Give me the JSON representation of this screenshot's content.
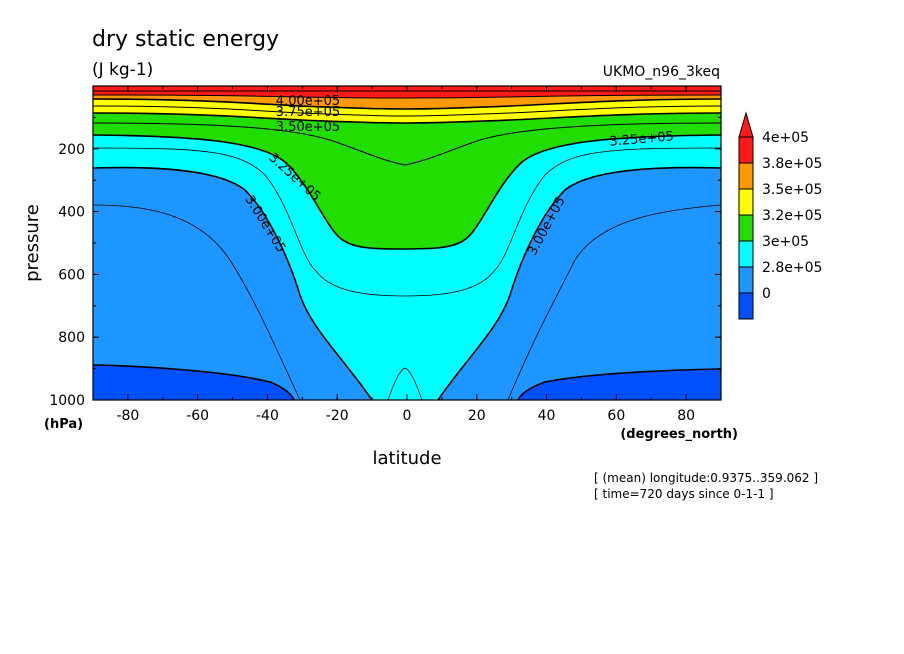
{
  "chart_data": {
    "type": "heatmap",
    "title": "dry static energy",
    "units": "(J kg-1)",
    "model": "UKMO_n96_3keq",
    "xlabel": "latitude",
    "x_units": "(degrees_north)",
    "ylabel": "pressure",
    "y_units": "(hPa)",
    "xlim": [
      -90,
      90
    ],
    "ylim": [
      1000,
      0
    ],
    "x_ticks": [
      -80,
      -60,
      -40,
      -20,
      0,
      20,
      40,
      60,
      80
    ],
    "y_ticks": [
      200,
      400,
      600,
      800,
      1000
    ],
    "x_tick_labels": [
      "-80",
      "-60",
      "-40",
      "-20",
      "0",
      "20",
      "40",
      "60",
      "80"
    ],
    "y_tick_labels": [
      "200",
      "400",
      "600",
      "800",
      "1000"
    ],
    "grid": false,
    "legend_position": "right",
    "colorbar": {
      "labels": [
        "4e+05",
        "3.8e+05",
        "3.5e+05",
        "3.2e+05",
        "3e+05",
        "2.8e+05",
        "0"
      ],
      "colors": [
        "#ff1a1a",
        "#ff9900",
        "#ffff00",
        "#22dd00",
        "#00ffff",
        "#1e96ff",
        "#0050ff"
      ]
    },
    "levels": [
      {
        "min": 0,
        "max": 275000,
        "color": "#0050ff"
      },
      {
        "min": 275000,
        "max": 300000,
        "color": "#1e96ff"
      },
      {
        "min": 300000,
        "max": 325000,
        "color": "#00ffff"
      },
      {
        "min": 325000,
        "max": 350000,
        "color": "#22dd00"
      },
      {
        "min": 350000,
        "max": 375000,
        "color": "#ffff00"
      },
      {
        "min": 375000,
        "max": 400000,
        "color": "#ff9900"
      },
      {
        "min": 400000,
        "max": 1000000,
        "color": "#ff1a1a"
      }
    ],
    "contour_labels": [
      {
        "text": "4.00e+05",
        "lat": -25,
        "p": 40
      },
      {
        "text": "3.75e+05",
        "lat": -25,
        "p": 63
      },
      {
        "text": "3.50e+05",
        "lat": -25,
        "p": 100
      },
      {
        "text": "3.25e+05",
        "lat": -33,
        "p": 240
      },
      {
        "text": "3.00e+05",
        "lat": -45,
        "p": 400
      },
      {
        "text": "3.00e+05",
        "lat": 40,
        "p": 410
      },
      {
        "text": "3.25e+05",
        "lat": 68,
        "p": 148
      }
    ],
    "footer": [
      "[ (mean) longitude:0.9375..359.062 ]",
      "[ time=720 days since 0-1-1 ]"
    ]
  }
}
